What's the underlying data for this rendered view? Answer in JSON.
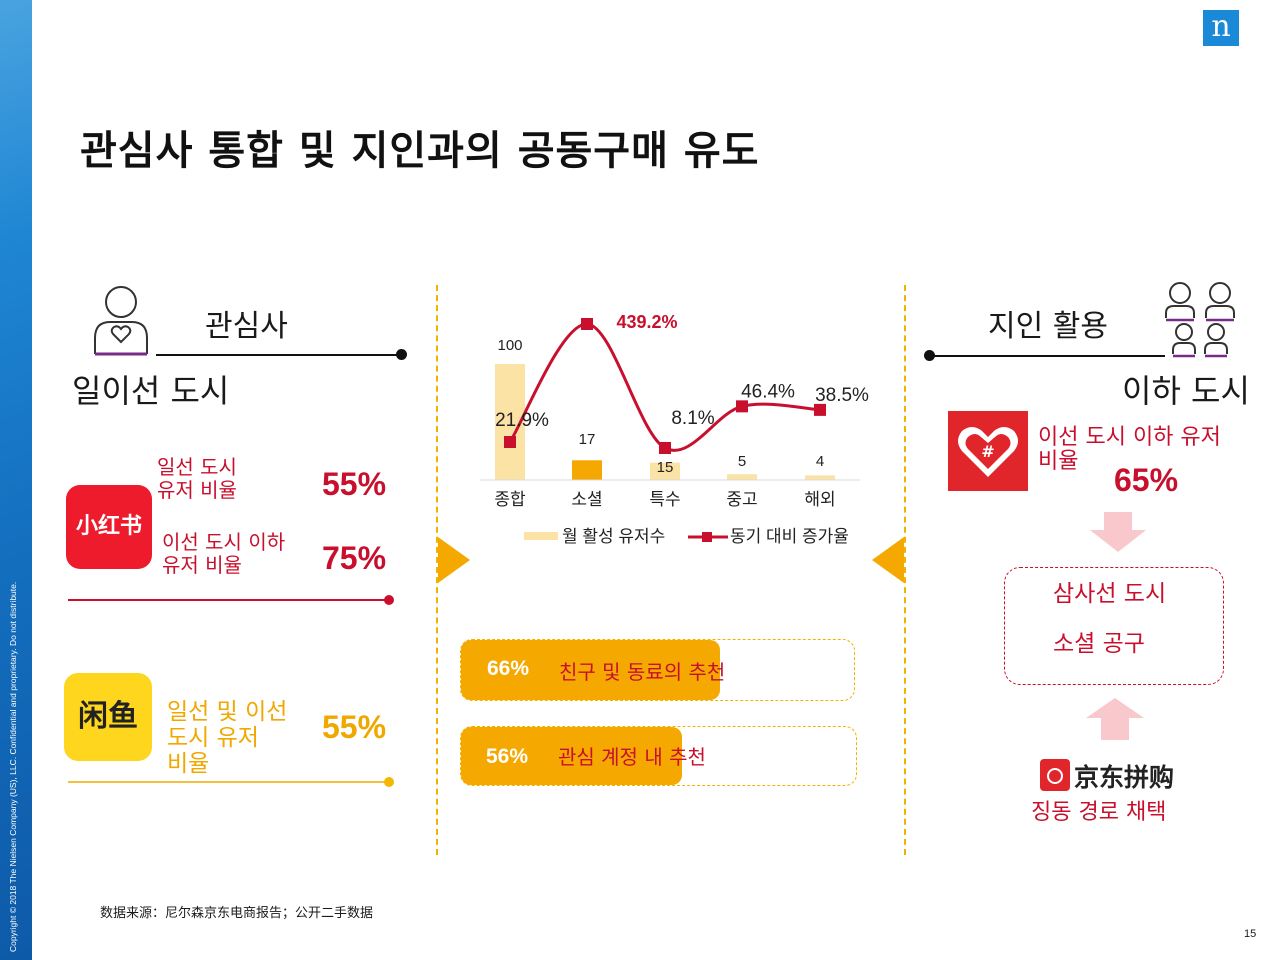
{
  "brand": {
    "logo_letter": "n",
    "copyright": "Copyright © 2018 The Nielsen Company (US), LLC. Confidential and proprietary. Do not distribute."
  },
  "title": "관심사 통합 및 지인과의 공동구매 유도",
  "left": {
    "header": "관심사",
    "subheader": "일이선 도시",
    "xiaohongshu": {
      "logo_text": "小红书",
      "stat1_label": "일선 도시\n유저 비율",
      "stat1_value": "55%",
      "stat2_label": "이선 도시 이하\n유저 비율",
      "stat2_value": "75%"
    },
    "xianyu": {
      "logo_text": "闲鱼",
      "stat_label": "일선 및 이선\n도시 유저\n비율",
      "stat_value": "55%"
    }
  },
  "chart_data": {
    "type": "bar+line",
    "categories": [
      "종합",
      "소셜",
      "특수",
      "중고",
      "해외"
    ],
    "series": [
      {
        "name": "월 활성 유저수",
        "type": "bar",
        "values": [
          100,
          17,
          15,
          5,
          4
        ],
        "color": "#fbe3a6",
        "color_highlight": "#f5a800"
      },
      {
        "name": "동기 대비 증가율",
        "type": "line",
        "values": [
          21.9,
          439.2,
          8.1,
          46.4,
          38.5
        ],
        "labels": [
          "21.9%",
          "439.2%",
          "8.1%",
          "46.4%",
          "38.5%"
        ],
        "color": "#c8102e"
      }
    ],
    "bar_labels": [
      "100",
      "17",
      "15",
      "5",
      "4"
    ]
  },
  "middle": {
    "recommend1_value": "66%",
    "recommend1_label": "친구 및 동료의 추천",
    "recommend1_fill": 0.66,
    "recommend2_value": "56%",
    "recommend2_label": "관심 계정 내 추천",
    "recommend2_fill": 0.56
  },
  "right": {
    "header": "지인 활용",
    "subheader": "이하 도시",
    "pinduoduo_label": "이선 도시 이하 유저\n비율",
    "pinduoduo_value": "65%",
    "box_line1": "삼사선 도시",
    "box_line2": "소셜 공구",
    "jd_logo_text": "京东拼购",
    "jd_caption": "징동 경로 채택"
  },
  "footer": {
    "source": "数据来源：尼尔森京东电商报告；公开二手数据",
    "page_number": "15"
  },
  "colors": {
    "red": "#c8102e",
    "orange": "#f5a800",
    "light_orange": "#fbe3a6",
    "brand_blue": "#1a8ad8"
  }
}
